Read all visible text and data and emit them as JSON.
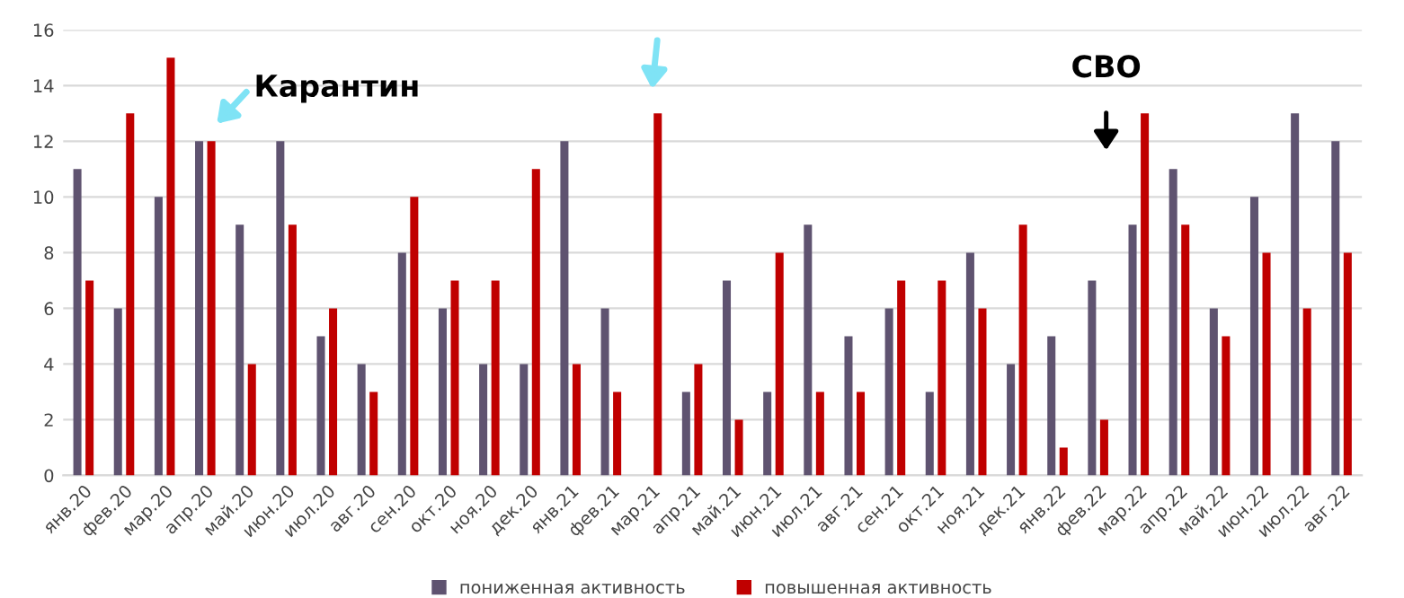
{
  "chart_data": {
    "type": "bar",
    "categories": [
      "янв.20",
      "фев.20",
      "мар.20",
      "апр.20",
      "май.20",
      "июн.20",
      "июл.20",
      "авг.20",
      "сен.20",
      "окт.20",
      "ноя.20",
      "дек.20",
      "янв.21",
      "фев.21",
      "мар.21",
      "апр.21",
      "май.21",
      "июн.21",
      "июл.21",
      "авг.21",
      "сен.21",
      "окт.21",
      "ноя.21",
      "дек.21",
      "янв.22",
      "фев.22",
      "мар.22",
      "апр.22",
      "май.22",
      "июн.22",
      "июл.22",
      "авг.22"
    ],
    "series": [
      {
        "name": "пониженная активность",
        "color": "#5f5370",
        "values": [
          11,
          6,
          10,
          12,
          9,
          12,
          5,
          4,
          8,
          6,
          4,
          4,
          12,
          6,
          0,
          3,
          7,
          3,
          9,
          5,
          6,
          3,
          8,
          4,
          5,
          7,
          9,
          11,
          6,
          10,
          13,
          12
        ]
      },
      {
        "name": "повышенная активность",
        "color": "#c00000",
        "values": [
          7,
          13,
          15,
          12,
          4,
          9,
          6,
          3,
          10,
          7,
          7,
          11,
          4,
          3,
          13,
          4,
          2,
          8,
          3,
          3,
          7,
          7,
          6,
          9,
          1,
          2,
          13,
          9,
          5,
          8,
          6,
          8
        ]
      }
    ],
    "ylim": [
      0,
      16
    ],
    "yticks": [
      0,
      2,
      4,
      6,
      8,
      10,
      12,
      14,
      16
    ],
    "grid": "y",
    "legend": "bottom",
    "annotations": [
      "Карантин",
      "СВО"
    ]
  }
}
